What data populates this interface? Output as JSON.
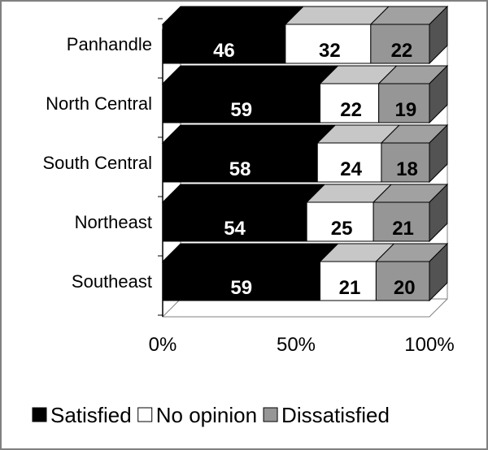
{
  "chart_data": {
    "type": "bar",
    "orientation": "horizontal",
    "stacked": "percent",
    "three_d": true,
    "categories": [
      "Panhandle",
      "North Central",
      "South Central",
      "Northeast",
      "Southeast"
    ],
    "series": [
      {
        "name": "Satisfied",
        "values": [
          46,
          59,
          58,
          54,
          59
        ],
        "color": "#000000",
        "label_color": "#ffffff"
      },
      {
        "name": "No opinion",
        "values": [
          32,
          22,
          24,
          25,
          21
        ],
        "color": "#ffffff",
        "label_color": "#000000"
      },
      {
        "name": "Dissatisfied",
        "values": [
          22,
          19,
          18,
          21,
          20
        ],
        "color": "#969696",
        "label_color": "#000000"
      }
    ],
    "x_ticks": [
      "0%",
      "50%",
      "100%"
    ],
    "xlim": [
      0,
      100
    ],
    "legend_position": "bottom",
    "grid": false
  }
}
